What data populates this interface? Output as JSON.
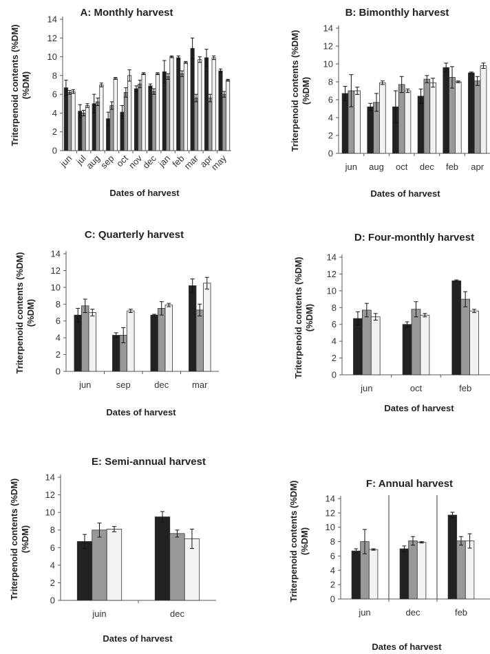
{
  "colors": {
    "dark": "#222222",
    "medium": "#999999",
    "light": "#f2f2f2",
    "axis": "#555555"
  },
  "chart_data": [
    {
      "type": "bar",
      "title": "A: Monthly harvest",
      "xlabel": "Dates of harvest",
      "ylabel": "Triterpenoid contents (%DM)",
      "ylim": [
        0,
        14
      ],
      "yticks": [
        0,
        2,
        4,
        6,
        8,
        10,
        12,
        14
      ],
      "categories": [
        "jun",
        "jul",
        "aug",
        "sep",
        "oct",
        "nov",
        "dec",
        "jan",
        "feb",
        "mar",
        "apr",
        "may"
      ],
      "series": [
        {
          "values": [
            6.7,
            4.2,
            5.0,
            3.4,
            4.1,
            6.6,
            6.9,
            8.4,
            9.9,
            10.9,
            9.9,
            8.5
          ],
          "errors": [
            0.8,
            0.7,
            1.0,
            0.7,
            0.7,
            0.3,
            0.2,
            1.2,
            0.2,
            1.1,
            0.9,
            0.2
          ]
        },
        {
          "values": [
            6.2,
            4.0,
            5.2,
            4.8,
            6.2,
            7.1,
            6.3,
            7.9,
            8.2,
            5.6,
            5.6,
            6.0
          ],
          "errors": [
            0.2,
            0.3,
            0.4,
            0.4,
            0.5,
            0.4,
            0.3,
            0.3,
            0.3,
            0.4,
            0.4,
            0.3
          ]
        },
        {
          "values": [
            6.3,
            4.8,
            7.0,
            7.7,
            8.0,
            8.2,
            8.2,
            10.0,
            9.4,
            9.7,
            9.9,
            7.5
          ],
          "errors": [
            0.2,
            0.2,
            0.2,
            0.1,
            0.6,
            0.1,
            0.1,
            0.1,
            0.1,
            0.3,
            0.2,
            0.1
          ]
        }
      ]
    },
    {
      "type": "bar",
      "title": "B: Bimonthly harvest",
      "xlabel": "Dates of harvest",
      "ylabel": "Triterpenoid contents (%DM)",
      "ylim": [
        0,
        14
      ],
      "yticks": [
        0,
        2,
        4,
        6,
        8,
        10,
        12,
        14
      ],
      "categories": [
        "jun",
        "aug",
        "oct",
        "dec",
        "feb",
        "apr"
      ],
      "series": [
        {
          "values": [
            6.7,
            5.2,
            5.2,
            6.4,
            9.6,
            9.0
          ],
          "errors": [
            0.8,
            0.4,
            1.8,
            0.8,
            0.5,
            0.1
          ]
        },
        {
          "values": [
            7.0,
            5.7,
            7.7,
            8.3,
            8.5,
            8.1
          ],
          "errors": [
            1.8,
            1.0,
            0.9,
            0.4,
            1.2,
            0.5
          ]
        },
        {
          "values": [
            7.0,
            7.9,
            7.0,
            7.9,
            8.0,
            9.8
          ],
          "errors": [
            0.4,
            0.2,
            0.2,
            0.5,
            0.1,
            0.3
          ]
        }
      ]
    },
    {
      "type": "bar",
      "title": "C:  Quarterly harvest",
      "xlabel": "Dates of harvest",
      "ylabel": "Triterpenoid contents (%DM)",
      "ylim": [
        0,
        14
      ],
      "yticks": [
        0,
        2,
        4,
        6,
        8,
        10,
        12,
        14
      ],
      "categories": [
        "jun",
        "sep",
        "dec",
        "mar"
      ],
      "series": [
        {
          "values": [
            6.7,
            4.3,
            6.7,
            10.2
          ],
          "errors": [
            0.8,
            0.3,
            0.1,
            0.8
          ]
        },
        {
          "values": [
            7.8,
            4.3,
            7.5,
            7.3
          ],
          "errors": [
            0.8,
            0.9,
            0.8,
            0.7
          ]
        },
        {
          "values": [
            7.0,
            7.2,
            7.9,
            10.5
          ],
          "errors": [
            0.4,
            0.2,
            0.2,
            0.7
          ]
        }
      ]
    },
    {
      "type": "bar",
      "title": "D:  Four-monthly harvest",
      "xlabel": "Dates of harvest",
      "ylabel": "Triterpenoid contents (%DM)",
      "ylim": [
        0,
        14
      ],
      "yticks": [
        0,
        2,
        4,
        6,
        8,
        10,
        12,
        14
      ],
      "categories": [
        "jun",
        "oct",
        "feb"
      ],
      "series": [
        {
          "values": [
            6.7,
            6.0,
            11.2
          ],
          "errors": [
            0.8,
            0.3,
            0.1
          ]
        },
        {
          "values": [
            7.7,
            7.8,
            9.0
          ],
          "errors": [
            0.8,
            0.9,
            0.9
          ]
        },
        {
          "values": [
            6.9,
            7.1,
            7.6
          ],
          "errors": [
            0.4,
            0.2,
            0.2
          ]
        }
      ]
    },
    {
      "type": "bar",
      "title": "E: Semi-annual harvest",
      "xlabel": "Dates of harvest",
      "ylabel": "Triterpenoid contents (%DM)",
      "ylim": [
        0,
        14
      ],
      "yticks": [
        0,
        2,
        4,
        6,
        8,
        10,
        12,
        14
      ],
      "categories": [
        "juin",
        "dec"
      ],
      "series": [
        {
          "values": [
            6.7,
            9.5
          ],
          "errors": [
            0.8,
            0.6
          ]
        },
        {
          "values": [
            8.0,
            7.6
          ],
          "errors": [
            0.8,
            0.4
          ]
        },
        {
          "values": [
            8.1,
            7.0
          ],
          "errors": [
            0.3,
            1.1
          ]
        }
      ]
    },
    {
      "type": "bar",
      "title": "F: Annual harvest",
      "xlabel": "Dates of harvest",
      "ylabel": "Triterpenoid contents (%DM)",
      "ylim": [
        0,
        14
      ],
      "yticks": [
        0,
        2,
        4,
        6,
        8,
        10,
        12,
        14
      ],
      "categories": [
        "jun",
        "dec",
        "feb"
      ],
      "separators": true,
      "series": [
        {
          "values": [
            6.7,
            7.0,
            11.7
          ],
          "errors": [
            0.3,
            0.4,
            0.4
          ]
        },
        {
          "values": [
            8.0,
            8.1,
            8.1
          ],
          "errors": [
            1.7,
            0.6,
            0.6
          ]
        },
        {
          "values": [
            6.9,
            7.9,
            8.1
          ],
          "errors": [
            0.1,
            0.1,
            1.0
          ]
        }
      ]
    }
  ]
}
